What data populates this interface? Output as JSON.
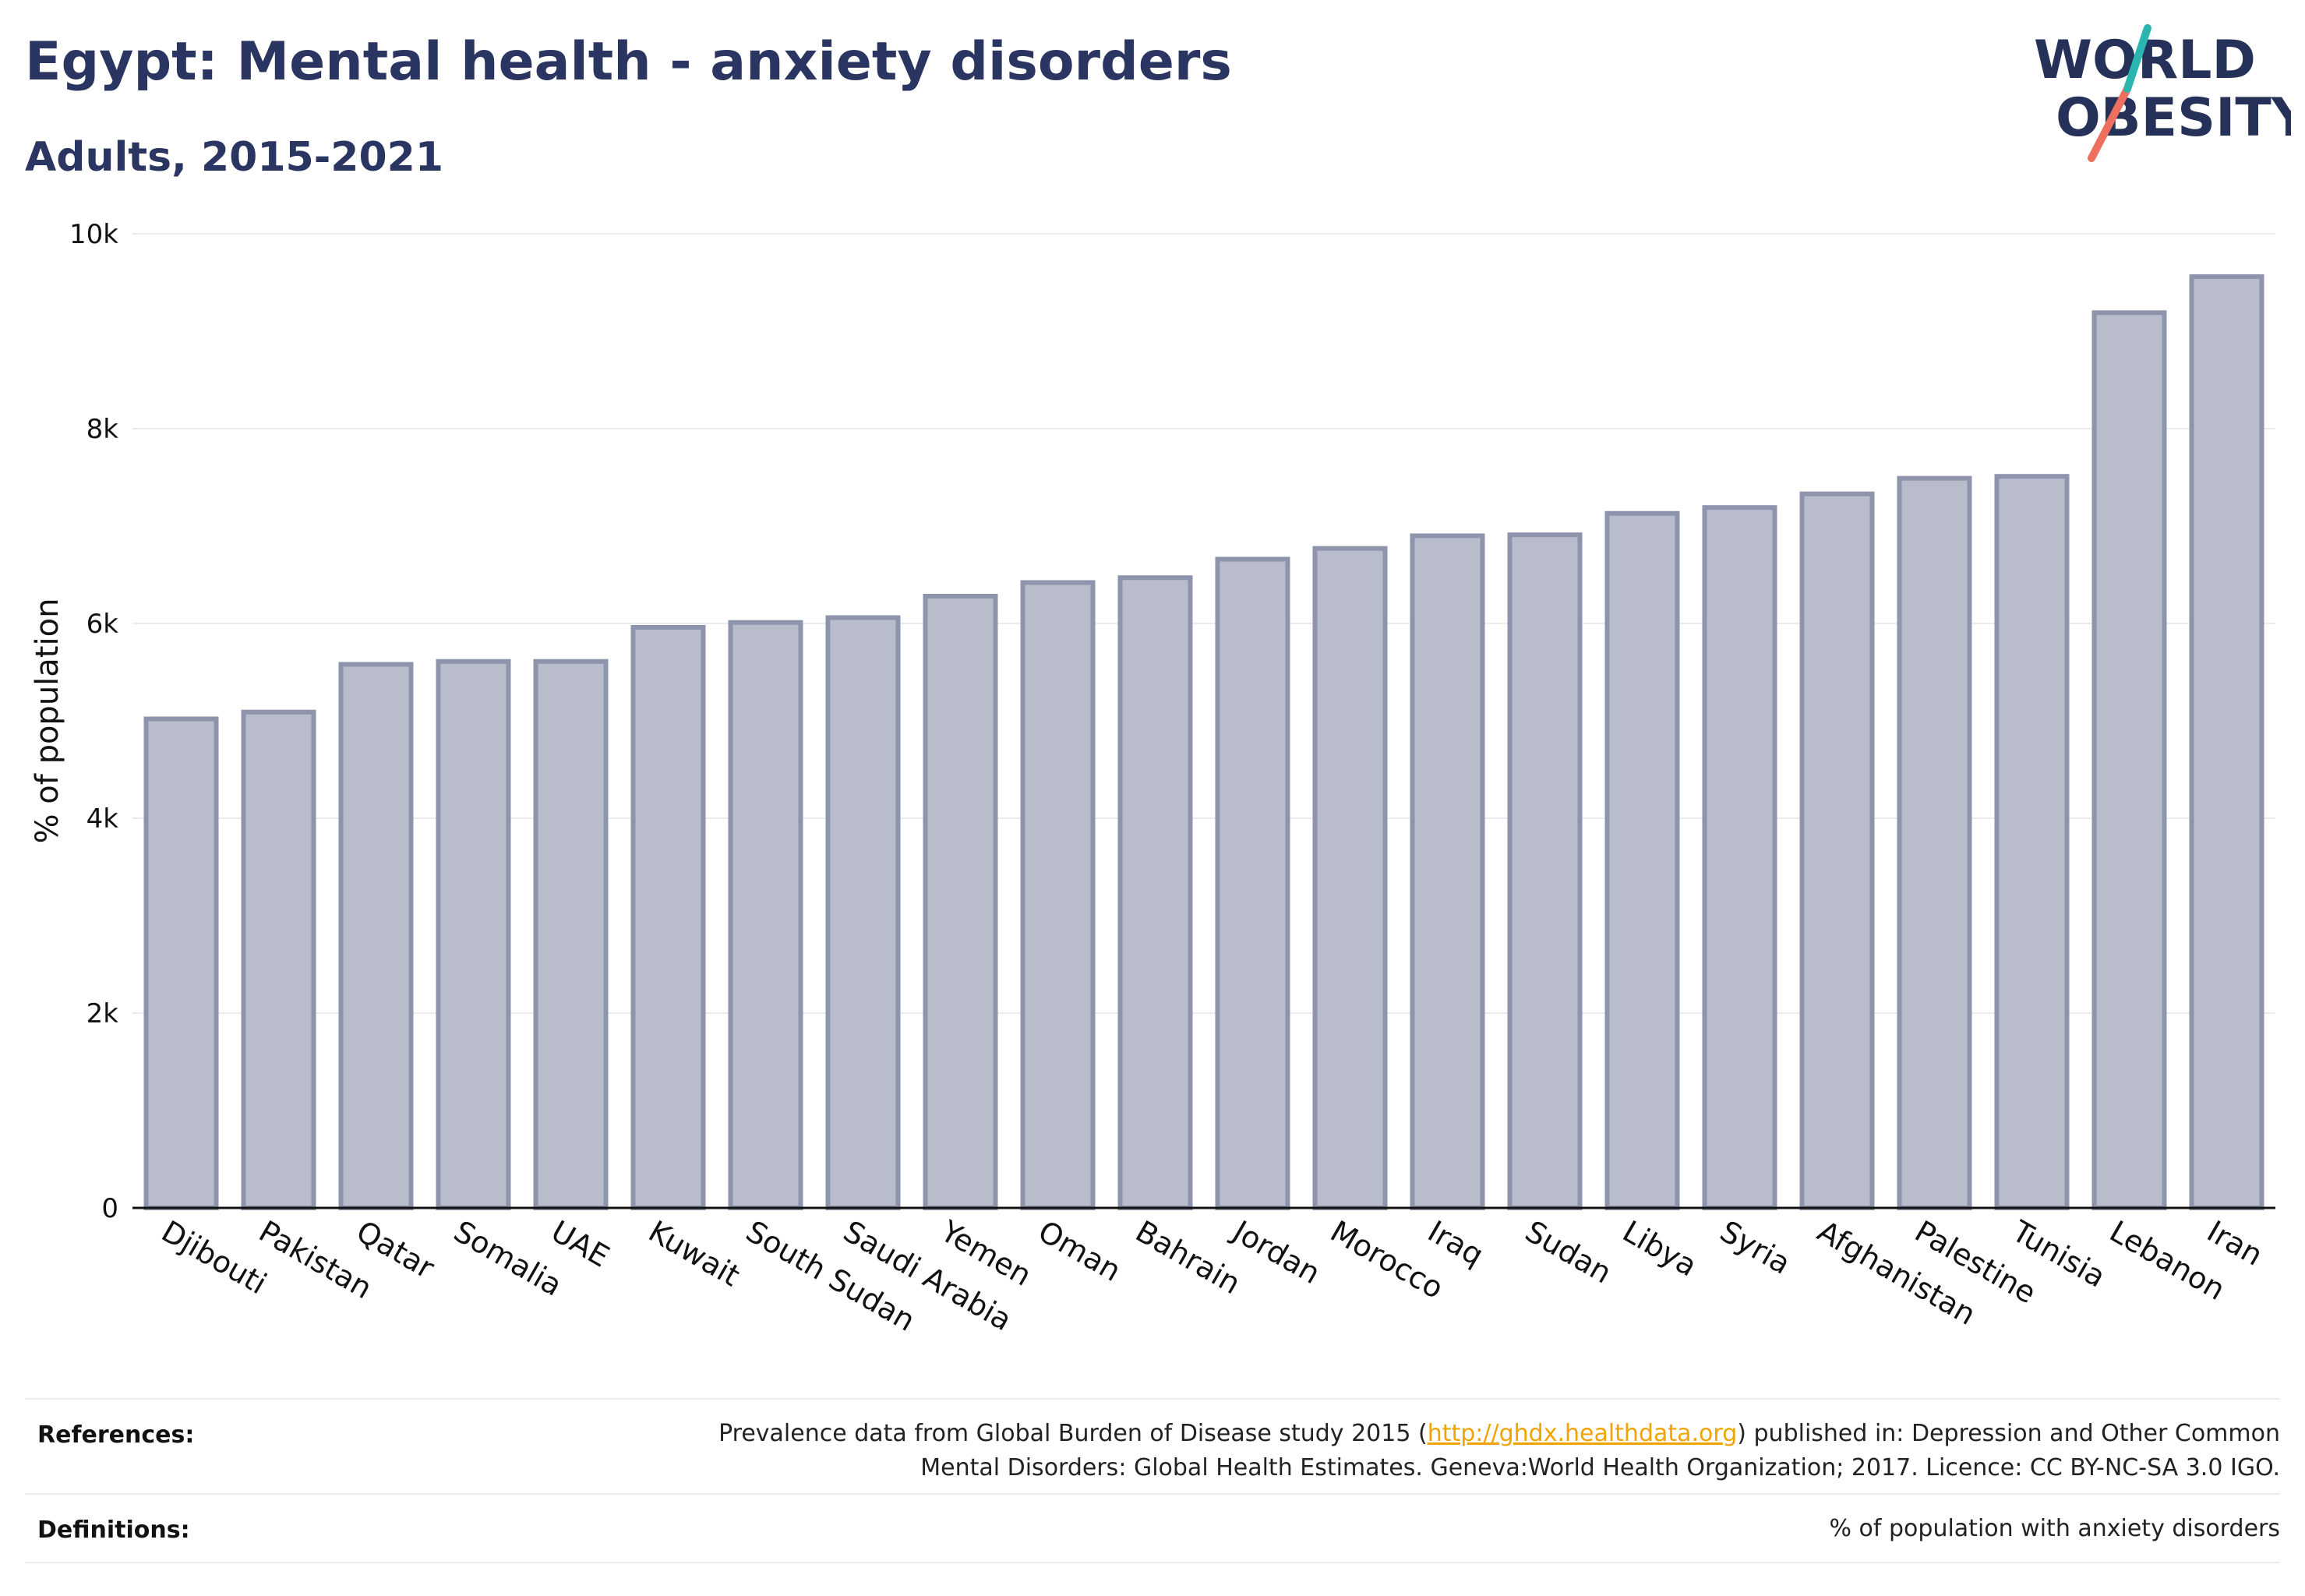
{
  "header": {
    "title": "Egypt: Mental health - anxiety disorders",
    "subtitle": "Adults, 2015-2021"
  },
  "logo": {
    "line1": "WORLD",
    "line2": "OBESITY",
    "text_color": "#263159",
    "accent_teal": "#2ab5b0",
    "accent_coral": "#ef6f5e"
  },
  "chart_data": {
    "type": "bar",
    "title": "",
    "xlabel": "",
    "ylabel": "% of population",
    "ylim": [
      0,
      10000
    ],
    "y_ticks": [
      0,
      2000,
      4000,
      6000,
      8000,
      10000
    ],
    "y_tick_labels": [
      "0",
      "2k",
      "4k",
      "6k",
      "8k",
      "10k"
    ],
    "grid": true,
    "bar_fill": "#b8bccb",
    "bar_stroke": "#8f94ad",
    "categories": [
      "Djibouti",
      "Pakistan",
      "Qatar",
      "Somalia",
      "UAE",
      "Kuwait",
      "South Sudan",
      "Saudi Arabia",
      "Yemen",
      "Oman",
      "Bahrain",
      "Jordan",
      "Morocco",
      "Iraq",
      "Sudan",
      "Libya",
      "Syria",
      "Afghanistan",
      "Palestine",
      "Tunisia",
      "Lebanon",
      "Iran"
    ],
    "values": [
      5020,
      5090,
      5580,
      5610,
      5610,
      5960,
      6010,
      6060,
      6280,
      6420,
      6470,
      6660,
      6770,
      6900,
      6910,
      7130,
      7190,
      7330,
      7490,
      7510,
      9190,
      9560
    ]
  },
  "footer": {
    "references_label": "References:",
    "references_text_before": "Prevalence data from Global Burden of Disease study 2015 (",
    "references_link": "http://ghdx.healthdata.org",
    "references_text_after": ") published in: Depression and Other Common",
    "references_text_line2": "Mental Disorders: Global Health Estimates. Geneva:World Health Organization; 2017. Licence: CC BY-NC-SA 3.0 IGO.",
    "definitions_label": "Definitions:",
    "definitions_text": "% of population with anxiety disorders"
  }
}
